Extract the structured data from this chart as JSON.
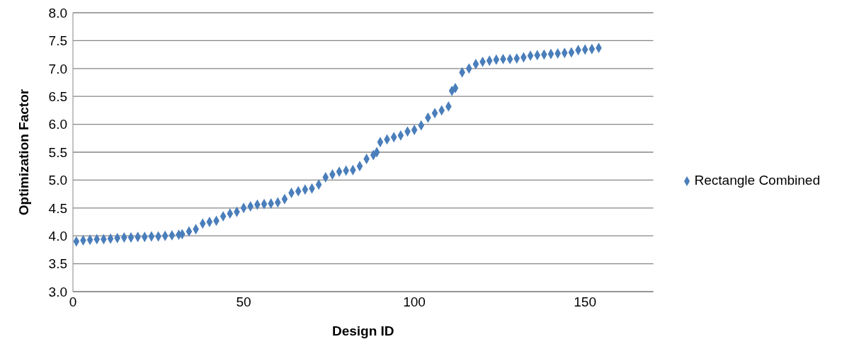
{
  "chart_data": {
    "type": "scatter",
    "xlabel": "Design ID",
    "ylabel": "Optimization Factor",
    "xlim": [
      0,
      170
    ],
    "xticks": [
      0,
      50,
      100,
      150
    ],
    "ylim": [
      3.0,
      8.0
    ],
    "yticks": [
      {
        "value": 3.0,
        "label": "3.0"
      },
      {
        "value": 3.5,
        "label": "3.5"
      },
      {
        "value": 4.0,
        "label": "4.0"
      },
      {
        "value": 4.5,
        "label": "4.5"
      },
      {
        "value": 5.0,
        "label": "5.0"
      },
      {
        "value": 5.5,
        "label": "5.5"
      },
      {
        "value": 6.0,
        "label": "6.0"
      },
      {
        "value": 6.5,
        "label": "6.5"
      },
      {
        "value": 7.0,
        "label": "7.0"
      },
      {
        "value": 7.5,
        "label": "7.5"
      },
      {
        "value": 8.0,
        "label": "8.0"
      }
    ],
    "grid": "y",
    "legend": "right",
    "marker": "diamond",
    "series": [
      {
        "name": "Rectangle Combined",
        "color": "#4a7ebb",
        "x": [
          1,
          3,
          5,
          7,
          9,
          11,
          13,
          15,
          17,
          19,
          21,
          23,
          25,
          27,
          29,
          31,
          32,
          34,
          36,
          38,
          40,
          42,
          44,
          46,
          48,
          50,
          52,
          54,
          56,
          58,
          60,
          62,
          64,
          66,
          68,
          70,
          72,
          74,
          76,
          78,
          80,
          82,
          84,
          86,
          88,
          89,
          90,
          92,
          94,
          96,
          98,
          100,
          102,
          104,
          106,
          108,
          110,
          111,
          112,
          114,
          116,
          118,
          120,
          122,
          124,
          126,
          128,
          130,
          132,
          134,
          136,
          138,
          140,
          142,
          144,
          146,
          148,
          150,
          152,
          154
        ],
        "values": [
          3.9,
          3.92,
          3.93,
          3.94,
          3.94,
          3.95,
          3.96,
          3.97,
          3.97,
          3.98,
          3.98,
          3.99,
          3.99,
          4.0,
          4.01,
          4.02,
          4.03,
          4.08,
          4.12,
          4.22,
          4.25,
          4.27,
          4.35,
          4.4,
          4.43,
          4.5,
          4.53,
          4.56,
          4.57,
          4.58,
          4.6,
          4.66,
          4.77,
          4.8,
          4.83,
          4.85,
          4.92,
          5.05,
          5.1,
          5.15,
          5.17,
          5.18,
          5.25,
          5.38,
          5.45,
          5.5,
          5.68,
          5.73,
          5.77,
          5.8,
          5.87,
          5.9,
          5.98,
          6.12,
          6.2,
          6.25,
          6.32,
          6.6,
          6.65,
          6.93,
          7.0,
          7.08,
          7.12,
          7.14,
          7.16,
          7.17,
          7.17,
          7.18,
          7.2,
          7.23,
          7.24,
          7.25,
          7.26,
          7.27,
          7.28,
          7.29,
          7.33,
          7.34,
          7.35,
          7.37
        ]
      }
    ]
  }
}
